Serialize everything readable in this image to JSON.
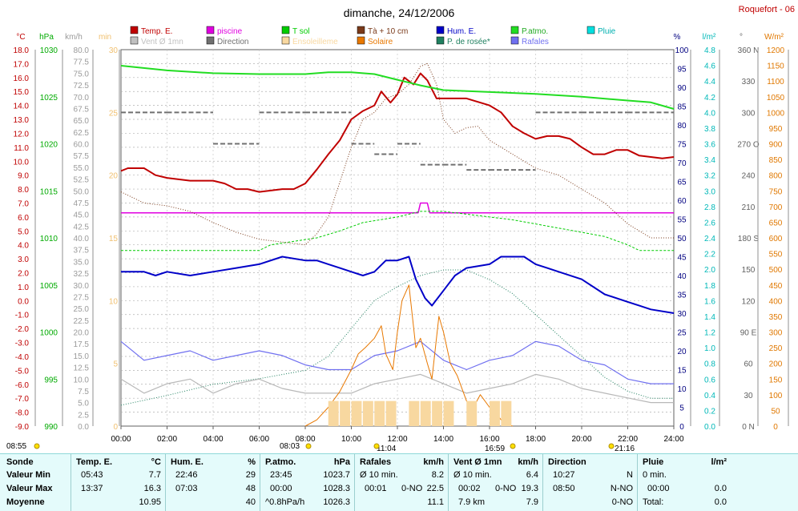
{
  "title": "dimanche, 24/12/2006",
  "station": "Roquefort - 06",
  "colors": {
    "temp": "#c00000",
    "piscine": "#e000e0",
    "tsol": "#00cc00",
    "t10": "#7a3a1a",
    "hum": "#0000c8",
    "patm": "#22dd22",
    "pluie": "#00e0e0",
    "vent": "#b8b8b8",
    "direction": "#707070",
    "ensoleillement": "#f8d8a0",
    "solaire": "#e87800",
    "rosee": "#208060",
    "rafales": "#7070f0"
  },
  "legend_row1": [
    {
      "label": "Temp. E.",
      "color": "#c00000"
    },
    {
      "label": "piscine",
      "color": "#e000e0"
    },
    {
      "label": "T sol",
      "color": "#00cc00"
    },
    {
      "label": "Tà + 10 cm",
      "color": "#7a3a1a"
    },
    {
      "label": "Hum. E.",
      "color": "#0000c8"
    },
    {
      "label": "P.atmo.",
      "color": "#22dd22"
    },
    {
      "label": "Pluie",
      "color": "#00e0e0"
    }
  ],
  "legend_row2": [
    {
      "label": "Vent Ø 1mn",
      "color": "#c0c0c0"
    },
    {
      "label": "Direction",
      "color": "#707070"
    },
    {
      "label": "Ensoleilleme",
      "color": "#f8d8a0"
    },
    {
      "label": "Solaire",
      "color": "#e87800"
    },
    {
      "label": "P. de rosée*",
      "color": "#208060"
    },
    {
      "label": "Rafales",
      "color": "#7070f0"
    }
  ],
  "axes": {
    "temp": {
      "unit": "°C",
      "ticks": [
        "18.0",
        "17.0",
        "16.0",
        "15.0",
        "14.0",
        "13.0",
        "12.0",
        "11.0",
        "10.0",
        "9.0",
        "8.0",
        "7.0",
        "6.0",
        "5.0",
        "4.0",
        "3.0",
        "2.0",
        "1.0",
        "0.0",
        "-1.0",
        "-2.0",
        "-3.0",
        "-4.0",
        "-5.0",
        "-6.0",
        "-7.0",
        "-8.0",
        "-9.0"
      ]
    },
    "hpa": {
      "unit": "hPa",
      "ticks": [
        "1030",
        "1025",
        "1020",
        "1015",
        "1010",
        "1005",
        "1000",
        "995",
        "990"
      ]
    },
    "kmh": {
      "unit": "km/h",
      "ticks": [
        "80.0",
        "77.5",
        "75.0",
        "72.5",
        "70.0",
        "67.5",
        "65.0",
        "62.5",
        "60.0",
        "57.5",
        "55.0",
        "52.5",
        "50.0",
        "47.5",
        "45.0",
        "42.5",
        "40.0",
        "37.5",
        "35.0",
        "32.5",
        "30.0",
        "27.5",
        "25.0",
        "22.5",
        "20.0",
        "17.5",
        "15.0",
        "12.5",
        "10.0",
        "7.5",
        "5.0",
        "2.5",
        "0.0"
      ]
    },
    "min": {
      "unit": "min",
      "ticks": [
        "30",
        "25",
        "20",
        "15",
        "10",
        "5",
        "0"
      ]
    },
    "pct": {
      "unit": "%",
      "ticks": [
        "100",
        "95",
        "90",
        "85",
        "80",
        "75",
        "70",
        "65",
        "60",
        "55",
        "50",
        "45",
        "40",
        "35",
        "30",
        "25",
        "20",
        "15",
        "10",
        "5",
        "0"
      ]
    },
    "lm2": {
      "unit": "l/m²",
      "ticks": [
        "4.8",
        "4.6",
        "4.4",
        "4.2",
        "4.0",
        "3.8",
        "3.6",
        "3.4",
        "3.2",
        "3.0",
        "2.8",
        "2.6",
        "2.4",
        "2.2",
        "2.0",
        "1.8",
        "1.6",
        "1.4",
        "1.2",
        "1.0",
        "0.8",
        "0.6",
        "0.4",
        "0.2",
        "0.0"
      ]
    },
    "deg": {
      "unit": "°",
      "ticks": [
        "360 N",
        "330",
        "300",
        "270 O",
        "240",
        "210",
        "180 S",
        "150",
        "120",
        "90 E",
        "60",
        "30",
        "0 N"
      ]
    },
    "wm2": {
      "unit": "W/m²",
      "ticks": [
        "1200",
        "1150",
        "1100",
        "1050",
        "1000",
        "950",
        "900",
        "850",
        "800",
        "750",
        "700",
        "650",
        "600",
        "550",
        "500",
        "450",
        "400",
        "350",
        "300",
        "250",
        "200",
        "150",
        "100",
        "50",
        "0"
      ]
    },
    "time": {
      "ticks": [
        "00:00",
        "02:00",
        "04:00",
        "06:00",
        "08:00",
        "10:00",
        "12:00",
        "14:00",
        "16:00",
        "18:00",
        "20:00",
        "22:00",
        "24:00"
      ]
    }
  },
  "markers": {
    "sunrise": "08:55",
    "solar_start": "08:03",
    "noon": "11:04",
    "sunset": "16:59",
    "moon": "21:16"
  },
  "chart_data": {
    "type": "line",
    "x_unit": "hours",
    "xlim": [
      0,
      24
    ],
    "series": [
      {
        "name": "Temp. E.",
        "axis": "temp",
        "x": [
          0,
          0.3,
          1,
          1.3,
          1.5,
          2,
          3,
          4,
          4.5,
          5,
          5.5,
          6,
          7,
          7.5,
          8,
          8.5,
          9,
          9.5,
          10,
          10.5,
          11,
          11.3,
          11.7,
          12,
          12.3,
          12.7,
          13,
          13.3,
          13.7,
          14,
          14.5,
          15,
          16,
          16.5,
          17,
          17.5,
          18,
          18.5,
          19,
          19.5,
          20,
          20.5,
          21,
          21.5,
          22,
          22.5,
          23,
          23.5,
          24
        ],
        "values": [
          9.3,
          9.5,
          9.5,
          9.2,
          9.0,
          8.8,
          8.6,
          8.6,
          8.4,
          8.0,
          8.0,
          7.8,
          8.0,
          8.0,
          8.4,
          9.4,
          10.5,
          11.5,
          13.0,
          13.6,
          14.0,
          15.0,
          14.2,
          14.8,
          16.0,
          15.5,
          16.3,
          15.8,
          14.5,
          14.5,
          14.5,
          14.5,
          14.0,
          13.5,
          12.5,
          12.0,
          11.6,
          11.8,
          11.8,
          11.6,
          11.0,
          10.5,
          10.5,
          10.8,
          10.8,
          10.4,
          10.3,
          10.2,
          10.3
        ]
      },
      {
        "name": "piscine",
        "axis": "temp",
        "x": [
          0,
          12.9,
          13,
          13.3,
          13.4,
          24
        ],
        "values": [
          6.3,
          6.3,
          7.0,
          7.0,
          6.3,
          6.3
        ]
      },
      {
        "name": "T sol",
        "axis": "temp",
        "x": [
          0,
          6,
          6.5,
          8.5,
          9.5,
          10.5,
          12,
          13,
          14,
          15,
          16,
          17,
          18,
          20,
          21,
          22,
          22.5,
          23,
          24
        ],
        "values": [
          3.6,
          3.6,
          4.0,
          4.5,
          5.0,
          5.6,
          6.0,
          6.4,
          6.4,
          6.2,
          6.0,
          5.8,
          5.5,
          4.9,
          4.6,
          4.0,
          3.6,
          3.6,
          3.6
        ]
      },
      {
        "name": "Tà + 10 cm",
        "axis": "temp",
        "x": [
          0,
          1,
          2,
          3,
          4,
          5,
          6,
          7,
          8,
          8.5,
          9,
          9.5,
          10,
          10.5,
          11,
          11.5,
          12,
          12.5,
          13,
          13.3,
          13.7,
          14,
          14.5,
          15,
          15.5,
          16,
          17,
          18,
          19,
          20,
          21,
          22,
          23,
          24
        ],
        "values": [
          7.8,
          7.0,
          6.8,
          6.4,
          5.6,
          4.9,
          4.4,
          4.2,
          4.0,
          4.8,
          6.0,
          8.5,
          11.0,
          13.0,
          13.5,
          14.5,
          14.8,
          15.5,
          16.8,
          17.0,
          15.5,
          13.0,
          12.0,
          12.4,
          12.5,
          11.5,
          10.5,
          9.5,
          9.0,
          8.0,
          7.0,
          5.5,
          4.5,
          4.5
        ]
      },
      {
        "name": "P. de rosée*",
        "axis": "temp",
        "x": [
          0,
          2,
          4,
          6,
          7,
          8,
          9,
          10,
          11,
          12,
          13,
          14,
          15,
          16,
          17,
          18,
          19,
          20,
          21,
          22,
          23,
          24
        ],
        "values": [
          -7.5,
          -6.8,
          -6.0,
          -5.6,
          -5.3,
          -5.0,
          -4.0,
          -2.0,
          0.0,
          1.0,
          1.8,
          2.2,
          2.2,
          1.5,
          0.5,
          -1.0,
          -2.5,
          -4.0,
          -5.5,
          -6.5,
          -7.0,
          -7.0
        ]
      },
      {
        "name": "P.atmo.",
        "axis": "hpa",
        "x": [
          0,
          2,
          4,
          6,
          8,
          9,
          10,
          11,
          12,
          13,
          14,
          16,
          18,
          20,
          22,
          23,
          24
        ],
        "values": [
          1028.3,
          1027.8,
          1027.5,
          1027.4,
          1027.4,
          1027.6,
          1027.6,
          1027.4,
          1026.8,
          1026.2,
          1025.7,
          1025.5,
          1025.3,
          1025.0,
          1024.6,
          1024.4,
          1023.7
        ]
      },
      {
        "name": "Hum. E.",
        "axis": "pct",
        "x": [
          0,
          1,
          1.5,
          2,
          3,
          4,
          5,
          6,
          7,
          8,
          8.5,
          9,
          9.5,
          10,
          10.5,
          11,
          11.5,
          12,
          12.5,
          12.8,
          13.2,
          13.5,
          14,
          14.5,
          15,
          16,
          16.5,
          17,
          17.5,
          18,
          18.5,
          19,
          20,
          21,
          22,
          22.5,
          23,
          24
        ],
        "values": [
          41,
          41,
          40,
          41,
          40,
          41,
          42,
          43,
          45,
          44,
          44,
          43,
          42,
          41,
          40,
          41,
          44,
          44,
          45,
          39,
          34,
          32,
          36,
          40,
          42,
          43,
          45,
          45,
          45,
          43,
          42,
          41,
          39,
          35,
          33,
          32,
          31,
          30
        ]
      },
      {
        "name": "Rafales",
        "axis": "kmh",
        "x": [
          0,
          1,
          2,
          3,
          4,
          5,
          6,
          7,
          8,
          9,
          10,
          11,
          12,
          13,
          14,
          15,
          16,
          17,
          18,
          19,
          20,
          21,
          22,
          23,
          24
        ],
        "values": [
          18,
          14,
          15,
          16,
          14,
          15,
          16,
          15,
          13,
          12,
          12,
          15,
          16,
          18,
          14,
          12,
          14,
          15,
          18,
          17,
          14,
          13,
          10,
          9,
          9
        ]
      },
      {
        "name": "Vent Ø 1mn",
        "axis": "kmh",
        "x": [
          0,
          1,
          2,
          3,
          4,
          5,
          6,
          7,
          8,
          9,
          10,
          11,
          12,
          13,
          14,
          15,
          16,
          17,
          18,
          19,
          20,
          21,
          22,
          23,
          24
        ],
        "values": [
          10,
          7,
          9,
          10,
          7,
          9,
          10,
          8,
          7,
          7,
          7,
          9,
          10,
          11,
          9,
          7,
          8,
          9,
          11,
          10,
          8,
          7,
          6,
          5,
          5
        ]
      },
      {
        "name": "Solaire",
        "axis": "wm2",
        "x": [
          8.0,
          8.5,
          9,
          9.5,
          10,
          10.3,
          10.6,
          11,
          11.3,
          11.5,
          11.8,
          12,
          12.2,
          12.5,
          12.8,
          13,
          13.3,
          13.5,
          13.8,
          14,
          14.3,
          14.6,
          15,
          15.3,
          15.6,
          16,
          16.3,
          16.5,
          16.8,
          17
        ],
        "values": [
          0,
          20,
          60,
          110,
          180,
          230,
          250,
          280,
          320,
          230,
          180,
          300,
          400,
          450,
          250,
          280,
          200,
          150,
          350,
          300,
          200,
          160,
          80,
          60,
          100,
          60,
          40,
          20,
          5,
          0
        ]
      },
      {
        "name": "Ensoleillement",
        "axis": "min",
        "x": [
          9.0,
          9.5,
          10.0,
          10.5,
          11.0,
          11.5,
          12.0,
          12.5,
          13.0,
          13.5,
          14.0,
          14.5,
          15.0,
          15.5,
          16.0,
          16.5
        ],
        "values": [
          1,
          1,
          1,
          1,
          1,
          1,
          0,
          1,
          1,
          1,
          1,
          0,
          1,
          0,
          1,
          1
        ]
      },
      {
        "name": "Direction",
        "axis": "deg",
        "x": [
          0,
          2,
          4,
          6,
          8,
          10,
          11,
          12,
          13,
          14,
          15,
          16,
          18,
          20,
          22,
          24
        ],
        "values": [
          300,
          300,
          270,
          300,
          300,
          270,
          260,
          270,
          250,
          250,
          245,
          245,
          300,
          300,
          300,
          300
        ]
      }
    ]
  },
  "stats": {
    "sonde": {
      "header": "Sonde",
      "min": "Valeur Min",
      "max": "Valeur Max",
      "moy": "Moyenne"
    },
    "temp": {
      "header": "Temp. E.",
      "unit": "°C",
      "min_time": "05:43",
      "min": "7.7",
      "max_time": "13:37",
      "max": "16.3",
      "moy": "10.95"
    },
    "hum": {
      "header": "Hum. E.",
      "unit": "%",
      "min_time": "22:46",
      "min": "29",
      "max_time": "07:03",
      "max": "48",
      "moy": "40"
    },
    "patm": {
      "header": "P.atmo.",
      "unit": "hPa",
      "min_time": "23:45",
      "min": "1023.7",
      "max_time": "00:00",
      "max": "1028.3",
      "moy_label": "^0.8hPa/h",
      "moy": "1026.3"
    },
    "rafales": {
      "header": "Rafales",
      "unit": "km/h",
      "min_label": "Ø 10 min.",
      "min": "8.2",
      "max_time": "00:01",
      "max_dir": "0-NO",
      "max": "22.5",
      "moy": "11.1"
    },
    "vent": {
      "header": "Vent Ø 1mn",
      "unit": "km/h",
      "min_label": "Ø 10 min.",
      "min": "6.4",
      "max_time": "00:02",
      "max_dir": "0-NO",
      "max": "19.3",
      "moy_label": "7.9 km",
      "moy": "7.9"
    },
    "direction": {
      "header": "Direction",
      "min_time": "10:27",
      "min": "N",
      "max_time": "08:50",
      "max": "N-NO",
      "moy": "0-NO"
    },
    "pluie": {
      "header": "Pluie",
      "unit": "l/m²",
      "min_label": "0 min.",
      "max_time": "00:00",
      "max": "0.0",
      "moy_label": "Total:",
      "moy": "0.0"
    }
  }
}
